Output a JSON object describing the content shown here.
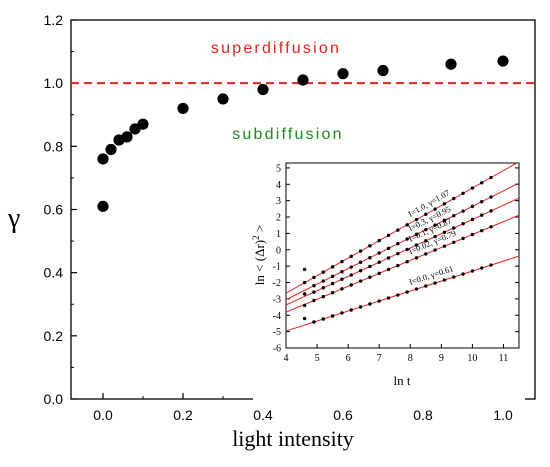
{
  "chart_data": [
    {
      "type": "scatter",
      "xlabel": "light intensity",
      "ylabel": "γ",
      "xlim": [
        -0.08,
        1.08
      ],
      "ylim": [
        0.0,
        1.2
      ],
      "xticks": [
        "0.0",
        "0.2",
        "0.4",
        "0.6",
        "0.8",
        "1.0"
      ],
      "xtick_values": [
        0.0,
        0.2,
        0.4,
        0.6,
        0.8,
        1.0
      ],
      "yticks": [
        "0.0",
        "0.2",
        "0.4",
        "0.6",
        "0.8",
        "1.0",
        "1.2"
      ],
      "ytick_values": [
        0.0,
        0.2,
        0.4,
        0.6,
        0.8,
        1.0,
        1.2
      ],
      "grid": false,
      "series": [
        {
          "points": [
            [
              0.0,
              0.61
            ],
            [
              0.0,
              0.76
            ],
            [
              0.02,
              0.79
            ],
            [
              0.04,
              0.82
            ],
            [
              0.06,
              0.83
            ],
            [
              0.08,
              0.855
            ],
            [
              0.1,
              0.87
            ],
            [
              0.2,
              0.92
            ],
            [
              0.3,
              0.95
            ],
            [
              0.4,
              0.98
            ],
            [
              0.5,
              1.01
            ],
            [
              0.6,
              1.03
            ],
            [
              0.7,
              1.04
            ],
            [
              0.87,
              1.06
            ],
            [
              1.0,
              1.07
            ]
          ]
        }
      ],
      "reference_line": {
        "y": 1.0,
        "style": "dashed",
        "color": "#e8201c"
      },
      "annotations": [
        {
          "text": "superdiffusion",
          "color": "#e8201c"
        },
        {
          "text": "subdiffusion",
          "color": "#1e8a1e"
        }
      ],
      "colors": {
        "points": "#000000",
        "axes": "#000000"
      }
    },
    {
      "type": "scatter",
      "xlabel": "ln t",
      "ylabel": "ln < (Δr)",
      "ylabel_sup": "2",
      "ylabel_end": " >",
      "xlim": [
        4,
        11.5
      ],
      "ylim": [
        -6,
        5.3
      ],
      "xticks": [
        "4",
        "5",
        "6",
        "7",
        "8",
        "9",
        "10",
        "11"
      ],
      "xtick_values": [
        4,
        5,
        6,
        7,
        8,
        9,
        10,
        11
      ],
      "yticks": [
        "-6",
        "-5",
        "-4",
        "-3",
        "-2",
        "-1",
        "0",
        "1",
        "2",
        "3",
        "4",
        "5"
      ],
      "ytick_values": [
        -6,
        -5,
        -4,
        -3,
        -2,
        -1,
        0,
        1,
        2,
        3,
        4,
        5
      ],
      "grid": false,
      "fit_color": "#e8201c",
      "series": [
        {
          "label": "I=1.0, γ=1.07",
          "slope": 1.07,
          "intercept": -6.93,
          "x_first": 4.6,
          "y_first": -1.2
        },
        {
          "label": "I=0.3, γ=0.95",
          "slope": 0.95,
          "intercept": -6.85,
          "x_first": 4.6,
          "y_first": -2.0
        },
        {
          "label": "I=0.1, γ=0.87",
          "slope": 0.87,
          "intercept": -6.85,
          "x_first": 4.6,
          "y_first": -2.7
        },
        {
          "label": "I=0.02, γ=0.79",
          "slope": 0.79,
          "intercept": -6.97,
          "x_first": 4.6,
          "y_first": -3.4
        },
        {
          "label": "I=0.0, γ=0.61",
          "slope": 0.61,
          "intercept": -7.4,
          "x_first": 4.6,
          "y_first": -4.2
        }
      ],
      "point_x_range": [
        4.6,
        10.7
      ]
    }
  ]
}
